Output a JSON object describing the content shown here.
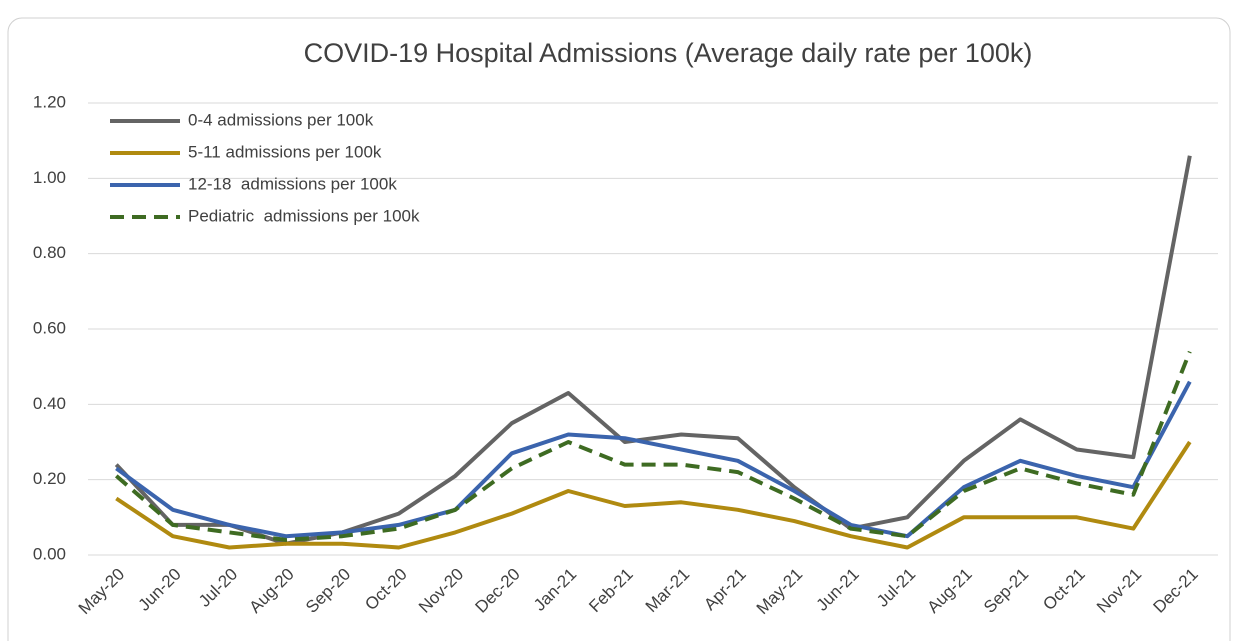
{
  "chart_data": {
    "type": "line",
    "title": "COVID-19 Hospital Admissions (Average daily rate per 100k)",
    "categories": [
      "May-20",
      "Jun-20",
      "Jul-20",
      "Aug-20",
      "Sep-20",
      "Oct-20",
      "Nov-20",
      "Dec-20",
      "Jan-21",
      "Feb-21",
      "Mar-21",
      "Apr-21",
      "May-21",
      "Jun-21",
      "Jul-21",
      "Aug-21",
      "Sep-21",
      "Oct-21",
      "Nov-21",
      "Dec-21"
    ],
    "series": [
      {
        "name": "0-4 admissions per 100k",
        "color": "#646464",
        "dashed": false,
        "values": [
          0.24,
          0.08,
          0.08,
          0.03,
          0.06,
          0.11,
          0.21,
          0.35,
          0.43,
          0.3,
          0.32,
          0.31,
          0.18,
          0.07,
          0.1,
          0.25,
          0.36,
          0.28,
          0.26,
          1.06
        ]
      },
      {
        "name": "5-11 admissions per 100k",
        "color": "#b08a10",
        "dashed": false,
        "values": [
          0.15,
          0.05,
          0.02,
          0.03,
          0.03,
          0.02,
          0.06,
          0.11,
          0.17,
          0.13,
          0.14,
          0.12,
          0.09,
          0.05,
          0.02,
          0.1,
          0.1,
          0.1,
          0.07,
          0.3
        ]
      },
      {
        "name": "12-18  admissions per 100k",
        "color": "#3b64ad",
        "dashed": false,
        "values": [
          0.23,
          0.12,
          0.08,
          0.05,
          0.06,
          0.08,
          0.12,
          0.27,
          0.32,
          0.31,
          0.28,
          0.25,
          0.17,
          0.08,
          0.05,
          0.18,
          0.25,
          0.21,
          0.18,
          0.46
        ]
      },
      {
        "name": "Pediatric  admissions per 100k",
        "color": "#3e6b22",
        "dashed": true,
        "values": [
          0.21,
          0.08,
          0.06,
          0.04,
          0.05,
          0.07,
          0.12,
          0.23,
          0.3,
          0.24,
          0.24,
          0.22,
          0.15,
          0.07,
          0.05,
          0.17,
          0.23,
          0.19,
          0.16,
          0.54
        ]
      }
    ],
    "ylim": [
      0,
      1.2
    ],
    "yticks": [
      {
        "value": 0,
        "label": "0.00"
      },
      {
        "value": 0.2,
        "label": "0.20"
      },
      {
        "value": 0.4,
        "label": "0.40"
      },
      {
        "value": 0.6,
        "label": "0.60"
      },
      {
        "value": 0.8,
        "label": "0.80"
      },
      {
        "value": 1.0,
        "label": "1.00"
      },
      {
        "value": 1.2,
        "label": "1.20"
      }
    ],
    "grid": true,
    "legend": "top-left"
  }
}
